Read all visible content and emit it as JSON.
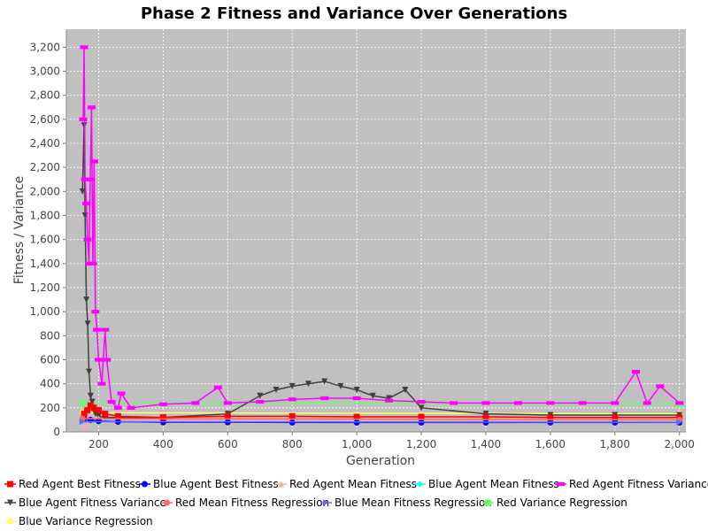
{
  "chart_data": {
    "type": "line",
    "title": "Phase 2 Fitness and Variance Over Generations",
    "xlabel": "Generation",
    "ylabel": "Fitness / Variance",
    "xlim": [
      100,
      2020
    ],
    "ylim": [
      0,
      3350
    ],
    "xticks": [
      200,
      400,
      600,
      800,
      1000,
      1200,
      1400,
      1600,
      1800,
      2000
    ],
    "xtick_labels": [
      "200",
      "400",
      "600",
      "800",
      "1,000",
      "1,200",
      "1,400",
      "1,600",
      "1,800",
      "2,000"
    ],
    "yticks": [
      0,
      200,
      400,
      600,
      800,
      1000,
      1200,
      1400,
      1600,
      1800,
      2000,
      2200,
      2400,
      2600,
      2800,
      3000,
      3200
    ],
    "ytick_labels": [
      "0",
      "200",
      "400",
      "600",
      "800",
      "1,000",
      "1,200",
      "1,400",
      "1,600",
      "1,800",
      "2,000",
      "2,200",
      "2,400",
      "2,600",
      "2,800",
      "3,000",
      "3,200"
    ],
    "grid": true,
    "plot_background": "#c0c0c0",
    "legend_position": "bottom",
    "series": [
      {
        "name": "Red Agent Best Fitness",
        "color": "#ff0000",
        "marker": "square",
        "x": [
          155,
          165,
          175,
          185,
          200,
          220,
          260,
          400,
          600,
          800,
          1000,
          1200,
          1400,
          1600,
          1800,
          2000
        ],
        "y": [
          150,
          180,
          220,
          200,
          180,
          150,
          130,
          120,
          130,
          130,
          125,
          125,
          125,
          120,
          120,
          120
        ]
      },
      {
        "name": "Blue Agent Best Fitness",
        "color": "#0000ff",
        "marker": "circle",
        "x": [
          155,
          175,
          200,
          260,
          400,
          600,
          800,
          1000,
          1200,
          1400,
          1600,
          1800,
          2000
        ],
        "y": [
          110,
          100,
          90,
          85,
          80,
          80,
          78,
          78,
          78,
          78,
          78,
          78,
          78
        ]
      },
      {
        "name": "Red Agent Mean Fitness",
        "color": "#ffaaaa",
        "marker": "triangle-up",
        "x": [
          155,
          165,
          175,
          200,
          260,
          400,
          600,
          800,
          1000,
          1200,
          1400,
          1600,
          1800,
          2000
        ],
        "y": [
          50,
          80,
          120,
          110,
          100,
          95,
          95,
          95,
          95,
          95,
          95,
          95,
          95,
          95
        ]
      },
      {
        "name": "Blue Agent Mean Fitness",
        "color": "#00ffff",
        "marker": "diamond",
        "x": [
          155,
          200,
          400,
          600,
          800,
          1000,
          1200,
          1400,
          1600,
          1800,
          2000
        ],
        "y": [
          90,
          85,
          80,
          80,
          80,
          80,
          80,
          80,
          80,
          80,
          80
        ]
      },
      {
        "name": "Red Agent Fitness Variance",
        "color": "#ff00ff",
        "marker": "rect",
        "x": [
          152,
          155,
          158,
          162,
          166,
          170,
          174,
          178,
          182,
          186,
          190,
          195,
          200,
          210,
          220,
          225,
          240,
          260,
          270,
          300,
          400,
          500,
          570,
          600,
          700,
          800,
          900,
          1000,
          1100,
          1200,
          1300,
          1400,
          1500,
          1600,
          1700,
          1800,
          1865,
          1900,
          1940,
          2000
        ],
        "y": [
          2600,
          3200,
          2100,
          1900,
          1600,
          1400,
          2100,
          2700,
          1400,
          2250,
          1000,
          850,
          600,
          400,
          850,
          600,
          250,
          200,
          320,
          200,
          230,
          240,
          370,
          240,
          250,
          270,
          280,
          280,
          260,
          250,
          240,
          240,
          240,
          240,
          240,
          240,
          500,
          240,
          380,
          240
        ]
      },
      {
        "name": "Blue Agent Fitness Variance",
        "color": "#404040",
        "marker": "triangle-down",
        "x": [
          150,
          155,
          158,
          162,
          166,
          170,
          175,
          180,
          185,
          190,
          200,
          220,
          260,
          400,
          600,
          700,
          750,
          800,
          850,
          900,
          950,
          1000,
          1050,
          1100,
          1150,
          1200,
          1400,
          1600,
          1800,
          2000
        ],
        "y": [
          2000,
          2550,
          1800,
          1100,
          900,
          500,
          300,
          250,
          200,
          150,
          130,
          120,
          120,
          120,
          150,
          300,
          350,
          380,
          400,
          420,
          380,
          350,
          300,
          280,
          350,
          200,
          150,
          140,
          140,
          140
        ]
      },
      {
        "name": "Red Mean Fitness Regression",
        "color": "#ff6666",
        "marker": "circle",
        "x": [
          150,
          2000
        ],
        "y": [
          110,
          100
        ]
      },
      {
        "name": "Blue Mean Fitness Regression",
        "color": "#6666ff",
        "marker": "triangle-right",
        "x": [
          150,
          2000
        ],
        "y": [
          85,
          80
        ]
      },
      {
        "name": "Red Variance Regression",
        "color": "#66ff66",
        "marker": "square",
        "x": [
          150,
          2000
        ],
        "y": [
          240,
          235
        ]
      },
      {
        "name": "Blue Variance Regression",
        "color": "#ffff66",
        "marker": "circle",
        "x": [
          150,
          2000
        ],
        "y": [
          160,
          150
        ]
      }
    ]
  }
}
